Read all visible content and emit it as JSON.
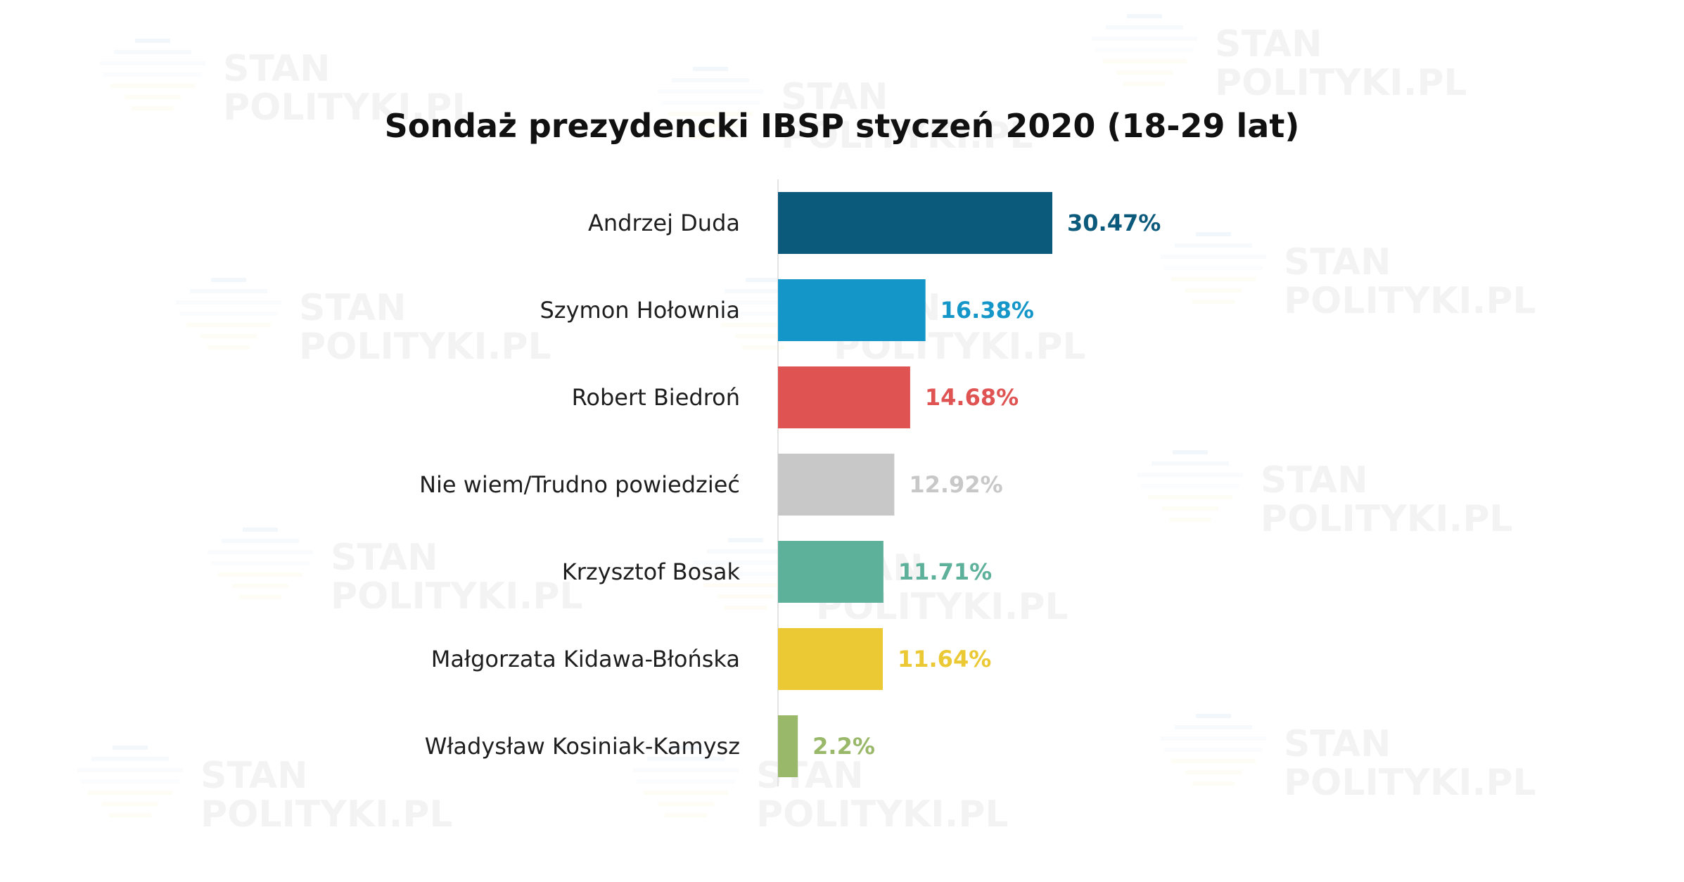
{
  "chart_data": {
    "type": "bar",
    "orientation": "horizontal",
    "title": "Sondaż prezydencki IBSP styczeń 2020 (18-29 lat)",
    "xlabel": "",
    "ylabel": "",
    "xlim": [
      0,
      30.47
    ],
    "grid": false,
    "legend": "none",
    "categories": [
      "Andrzej Duda",
      "Szymon Hołownia",
      "Robert Biedroń",
      "Nie wiem/Trudno powiedzieć",
      "Krzysztof Bosak",
      "Małgorzata Kidawa-Błońska",
      "Władysław Kosiniak-Kamysz"
    ],
    "values": [
      30.47,
      16.38,
      14.68,
      12.92,
      11.71,
      11.64,
      2.2
    ],
    "value_labels": [
      "30.47%",
      "16.38%",
      "14.68%",
      "12.92%",
      "11.71%",
      "11.64%",
      "2.2%"
    ],
    "colors": [
      "#0b5a7b",
      "#1596c8",
      "#df5353",
      "#c8c8c8",
      "#5db09a",
      "#ebc934",
      "#9ab86a"
    ]
  },
  "watermark": {
    "line1": "STAN",
    "line2": "POLITYKI.PL",
    "stripe_colors": [
      "#6aa9d6",
      "#9dc4e3",
      "#b8d4ea",
      "#cfe0ee",
      "#e9d98c"
    ]
  }
}
